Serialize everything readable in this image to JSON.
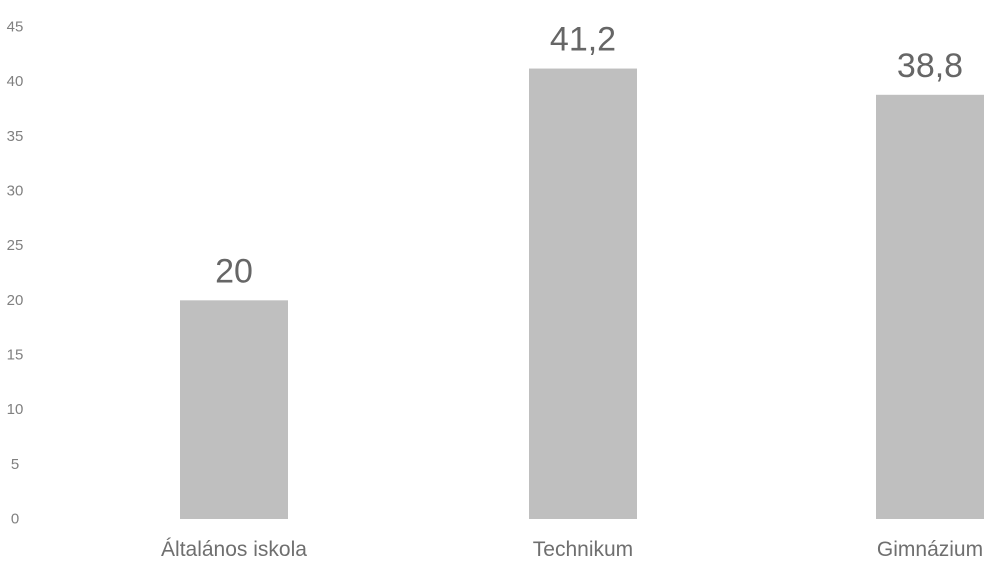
{
  "chart_data": {
    "type": "bar",
    "categories": [
      "Általános iskola",
      "Technikum",
      "Gimnázium"
    ],
    "values": [
      20,
      41.2,
      38.8
    ],
    "data_labels": [
      "20",
      "41,2",
      "38,8"
    ],
    "y_ticks": [
      "0",
      "5",
      "10",
      "15",
      "20",
      "25",
      "30",
      "35",
      "40",
      "45"
    ],
    "ylim": [
      0,
      45
    ],
    "grid": false,
    "legend": "none",
    "title": "",
    "xlabel": "",
    "ylabel": "",
    "bar_color": "#bfbfbf"
  }
}
